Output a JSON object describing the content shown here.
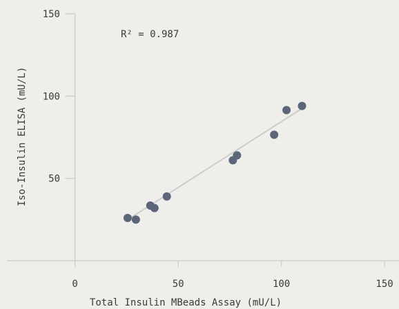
{
  "chart_data": {
    "type": "scatter",
    "xlabel": "Total Insulin MBeads Assay (mU/L)",
    "ylabel": "Iso-Insulin ELISA (mU/L)",
    "xlim": [
      -33,
      157
    ],
    "ylim": [
      0,
      150
    ],
    "xticks": [
      0,
      50,
      100,
      150
    ],
    "yticks": [
      50,
      100,
      150
    ],
    "xtick_labels": [
      "0",
      "50",
      "100",
      "150"
    ],
    "ytick_labels": [
      "50",
      "100",
      "150"
    ],
    "annotation": "R² = 0.987",
    "grid": false,
    "colors": {
      "background": "#f0eeeb",
      "axis": "#cfcfcf",
      "points": "#5c6679",
      "trendline": "#cccccc",
      "text": "#3a3a3a"
    },
    "points": [
      {
        "x": 25.5,
        "y": 26.0
      },
      {
        "x": 29.5,
        "y": 25.0
      },
      {
        "x": 36.5,
        "y": 33.5
      },
      {
        "x": 38.5,
        "y": 32.0
      },
      {
        "x": 44.5,
        "y": 39.0
      },
      {
        "x": 76.5,
        "y": 61.0
      },
      {
        "x": 78.5,
        "y": 64.0
      },
      {
        "x": 96.5,
        "y": 76.5
      },
      {
        "x": 102.5,
        "y": 91.5
      },
      {
        "x": 110.0,
        "y": 94.0
      }
    ],
    "trendline": {
      "x1": 25,
      "y1": 24.5,
      "x2": 110,
      "y2": 92.5
    }
  }
}
